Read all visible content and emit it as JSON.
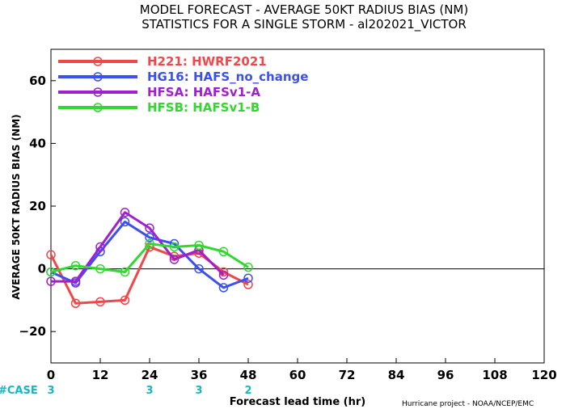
{
  "chart_data": {
    "type": "line",
    "title_line1": "MODEL FORECAST - AVERAGE 50KT RADIUS BIAS (NM)",
    "title_line2": "STATISTICS FOR A SINGLE STORM - al202021_VICTOR",
    "ylabel": "AVERAGE 50KT RADIUS BIAS (NM)",
    "xlabel": "Forecast lead time (hr)",
    "credit": "Hurricane project - NOAA/NCEP/EMC",
    "xlim": [
      0,
      120
    ],
    "ylim": [
      -30,
      70
    ],
    "x_ticks": [
      0,
      12,
      24,
      36,
      48,
      60,
      72,
      84,
      96,
      108,
      120
    ],
    "y_ticks": [
      -20,
      0,
      20,
      40,
      60
    ],
    "case_label": "#CASE",
    "cases": [
      {
        "x": 0,
        "n": "3"
      },
      {
        "x": 24,
        "n": "3"
      },
      {
        "x": 36,
        "n": "3"
      },
      {
        "x": 48,
        "n": "2"
      }
    ],
    "legend_placement": "top-left",
    "series": [
      {
        "name": "H221: HWRF2021",
        "color": "#f04848",
        "x": [
          0,
          6,
          12,
          18,
          24,
          30,
          36,
          42,
          48
        ],
        "y": [
          4.5,
          -11,
          -10.5,
          -10,
          7,
          4,
          5,
          -1,
          -5
        ]
      },
      {
        "name": "HG16: HAFS_no_change",
        "color": "#3c50f0",
        "x": [
          0,
          6,
          12,
          18,
          24,
          30,
          36,
          42,
          48
        ],
        "y": [
          -1,
          -4.5,
          5.5,
          15,
          10,
          8,
          0,
          -6,
          -3
        ]
      },
      {
        "name": "HFSA: HAFSv1-A",
        "color": "#a020d0",
        "x": [
          0,
          6,
          12,
          18,
          24,
          30,
          36,
          42,
          48
        ],
        "y": [
          -4,
          -4,
          7,
          18,
          13,
          3,
          6,
          -2,
          null
        ]
      },
      {
        "name": "HFSB: HAFSv1-B",
        "color": "#30d830",
        "x": [
          0,
          6,
          12,
          18,
          24,
          30,
          36,
          42,
          48
        ],
        "y": [
          -1,
          1,
          0,
          -1,
          8,
          7,
          7.5,
          5.5,
          0.5
        ]
      }
    ]
  }
}
